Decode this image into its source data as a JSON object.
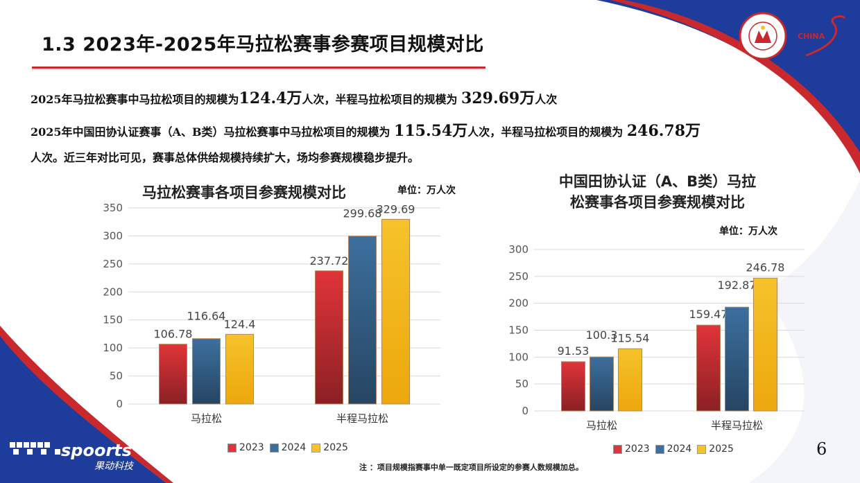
{
  "header": {
    "title": "1.3 2023年-2025年马拉松赛事参赛项目规模对比"
  },
  "logo": {
    "org_arc": "CHINESE ATHLETICS ASSOCIATION",
    "org_cn": "中国田径协会",
    "china": "CHINA"
  },
  "summary": {
    "line1": [
      {
        "t": "2025年马拉松赛事中马拉松项目的规模为",
        "big": false
      },
      {
        "t": "124.4万",
        "big": true
      },
      {
        "t": "人次，半程马拉松项目的规模为 ",
        "big": false
      },
      {
        "t": "329.69万",
        "big": true
      },
      {
        "t": "人次",
        "big": false
      }
    ],
    "line2": [
      {
        "t": "2025年中国田协认证赛事（A、B类）马拉松赛事中马拉松项目的规模为 ",
        "big": false
      },
      {
        "t": "115.54万",
        "big": true
      },
      {
        "t": "人次，半程马拉松项目的规模为 ",
        "big": false
      },
      {
        "t": "246.78万",
        "big": true
      }
    ],
    "line3": [
      {
        "t": "人次。近三年对比可见，赛事总体供给规模持续扩大，场均参赛规模稳步提升。",
        "big": false
      }
    ]
  },
  "colors": {
    "2023": "#e0343a",
    "2024": "#3d6f9e",
    "2025": "#f6c22b",
    "grid": "#d9d9d9",
    "accent": "#c9282d"
  },
  "chart_data": [
    {
      "type": "bar",
      "title": "马拉松赛事各项目参赛规模对比",
      "unit": "单位：万人次",
      "categories": [
        "马拉松",
        "半程马拉松"
      ],
      "series": [
        {
          "name": "2023",
          "values": [
            106.78,
            237.72
          ]
        },
        {
          "name": "2024",
          "values": [
            116.64,
            299.68
          ]
        },
        {
          "name": "2025",
          "values": [
            124.4,
            329.69
          ]
        }
      ],
      "ylim": [
        0,
        350
      ],
      "yticks": [
        0,
        50,
        100,
        150,
        200,
        250,
        300,
        350
      ],
      "legend": "bottom",
      "grid": true
    },
    {
      "type": "bar",
      "title_lines": [
        "中国田协认证（A、B类）马拉",
        "松赛事各项目参赛规模对比"
      ],
      "unit": "单位：万人次",
      "categories": [
        "马拉松",
        "半程马拉松"
      ],
      "series": [
        {
          "name": "2023",
          "values": [
            91.53,
            159.47
          ]
        },
        {
          "name": "2024",
          "values": [
            100.3,
            192.87
          ]
        },
        {
          "name": "2025",
          "values": [
            115.54,
            246.78
          ]
        }
      ],
      "ylim": [
        0,
        300
      ],
      "yticks": [
        0,
        50,
        100,
        150,
        200,
        250,
        300
      ],
      "legend": "bottom",
      "grid": true
    }
  ],
  "footer": {
    "note": "注 ：项目规模指赛事中单一既定项目所设定的参赛人数规模加总。",
    "page": "6",
    "brand_name": "spoorts",
    "brand_sub": "果动科技"
  }
}
